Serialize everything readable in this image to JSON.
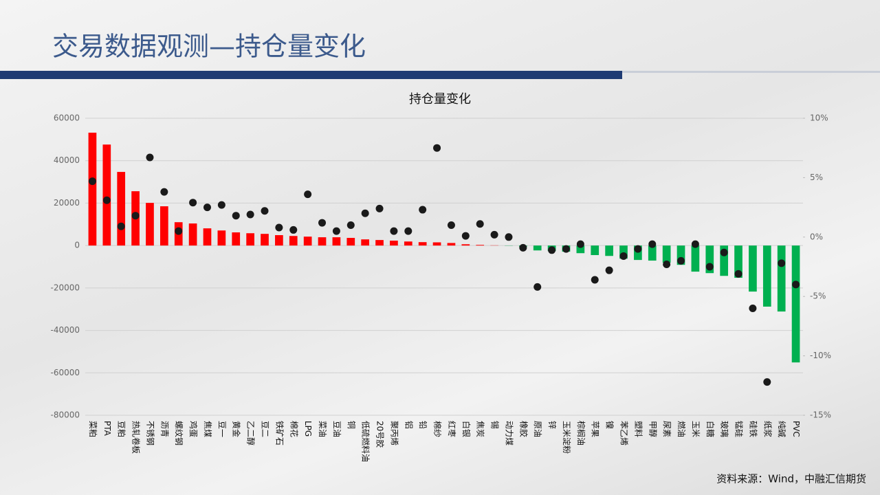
{
  "header": {
    "title": "交易数据观测—持仓量变化"
  },
  "chart_data": {
    "type": "bar",
    "title": "持仓量变化",
    "categories": [
      "菜粕",
      "PTA",
      "豆粕",
      "热轧卷板",
      "不锈钢",
      "沥青",
      "螺纹钢",
      "鸡蛋",
      "焦煤",
      "豆一",
      "黄金",
      "乙二醇",
      "豆二",
      "铁矿石",
      "棉花",
      "LPG",
      "菜油",
      "豆油",
      "铜",
      "低硫燃料油",
      "20号胶",
      "聚丙烯",
      "铝",
      "铅",
      "棉纱",
      "红枣",
      "白银",
      "焦炭",
      "锡",
      "动力煤",
      "橡胶",
      "原油",
      "锌",
      "玉米淀粉",
      "棕榈油",
      "苹果",
      "镍",
      "苯乙烯",
      "塑料",
      "甲醇",
      "尿素",
      "燃油",
      "玉米",
      "白糖",
      "玻璃",
      "锰硅",
      "硅铁",
      "纸浆",
      "纯碱",
      "PVC"
    ],
    "series": [
      {
        "type": "bar",
        "positive_color": "#ff0000",
        "negative_color": "#00b050",
        "values": [
          53200,
          47600,
          34700,
          25600,
          20100,
          18500,
          11000,
          10400,
          8100,
          7100,
          6200,
          5800,
          5500,
          4900,
          4500,
          4200,
          3900,
          3900,
          3600,
          2900,
          2600,
          2300,
          1900,
          1600,
          1500,
          1200,
          600,
          300,
          100,
          -100,
          -500,
          -2300,
          -2600,
          -2900,
          -3600,
          -4500,
          -4900,
          -6200,
          -6800,
          -7100,
          -8100,
          -9100,
          -12300,
          -13000,
          -14300,
          -15200,
          -21700,
          -28800,
          -31100,
          -55100
        ]
      },
      {
        "type": "scatter",
        "axis": "y2",
        "color": "#1a1a1a",
        "values": [
          4.7,
          3.1,
          0.9,
          1.8,
          6.7,
          3.8,
          0.5,
          2.9,
          2.5,
          2.7,
          1.8,
          1.9,
          2.2,
          0.8,
          0.6,
          3.6,
          1.2,
          0.5,
          1.0,
          2.0,
          2.4,
          0.5,
          0.5,
          2.3,
          7.5,
          1.0,
          0.1,
          1.1,
          0.2,
          0.0,
          -0.9,
          -4.2,
          -1.1,
          -1.0,
          -0.6,
          -3.6,
          -2.8,
          -1.6,
          -1.0,
          -0.6,
          -2.3,
          -2.0,
          -0.6,
          -2.5,
          -1.3,
          -3.1,
          -6.0,
          -12.2,
          -2.2,
          -4.0
        ]
      }
    ],
    "ylim": [
      -80000,
      60000
    ],
    "yticks": [
      -80000,
      -60000,
      -40000,
      -20000,
      0,
      20000,
      40000,
      60000
    ],
    "y2lim": [
      -15,
      10
    ],
    "y2ticks": [
      {
        "value": -15,
        "label": "-15%"
      },
      {
        "value": -10,
        "label": "-10%"
      },
      {
        "value": -5,
        "label": "-5%"
      },
      {
        "value": 0,
        "label": "0%"
      },
      {
        "value": 5,
        "label": "5%"
      },
      {
        "value": 10,
        "label": "10%"
      }
    ],
    "grid": true
  },
  "footer": {
    "source": "资料来源：Wind，中融汇信期货"
  }
}
